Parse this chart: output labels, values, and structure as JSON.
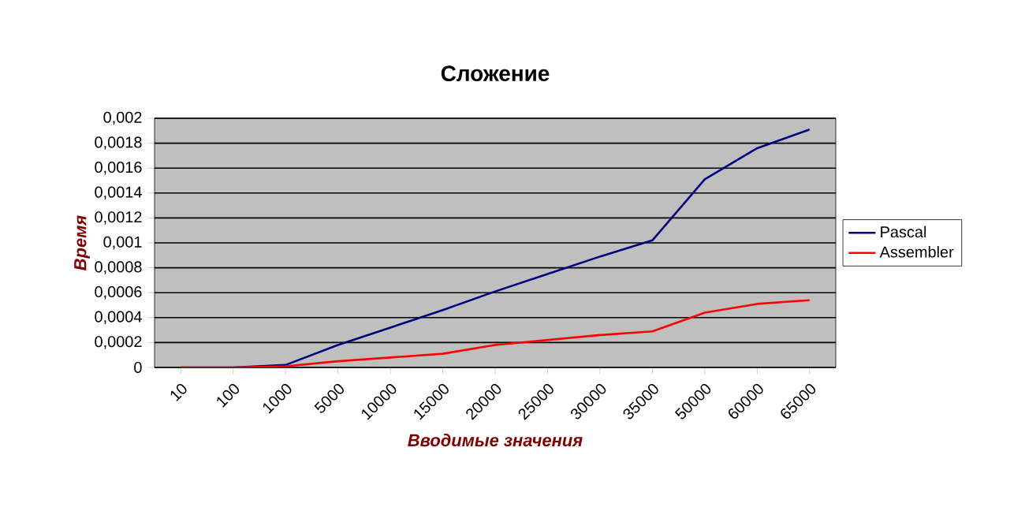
{
  "chart_data": {
    "type": "line",
    "title": "Сложение",
    "xlabel": "Вводимые значения",
    "ylabel": "Время",
    "categories": [
      "10",
      "100",
      "1000",
      "5000",
      "10000",
      "15000",
      "20000",
      "25000",
      "30000",
      "35000",
      "50000",
      "60000",
      "65000"
    ],
    "series": [
      {
        "name": "Pascal",
        "color": "#000080",
        "values": [
          0,
          0,
          2e-05,
          0.00018,
          0.00032,
          0.00046,
          0.00061,
          0.00075,
          0.00089,
          0.00102,
          0.00151,
          0.00176,
          0.00191
        ]
      },
      {
        "name": "Assembler",
        "color": "#ff0000",
        "values": [
          0,
          0,
          1e-05,
          5e-05,
          8e-05,
          0.00011,
          0.00018,
          0.00022,
          0.00026,
          0.00029,
          0.00044,
          0.00051,
          0.00054
        ]
      }
    ],
    "ylim": [
      0,
      0.002
    ],
    "yticks": [
      {
        "value": 0,
        "label": "0"
      },
      {
        "value": 0.0002,
        "label": "0,0002"
      },
      {
        "value": 0.0004,
        "label": "0,0004"
      },
      {
        "value": 0.0006,
        "label": "0,0006"
      },
      {
        "value": 0.0008,
        "label": "0,0008"
      },
      {
        "value": 0.001,
        "label": "0,001"
      },
      {
        "value": 0.0012,
        "label": "0,0012"
      },
      {
        "value": 0.0014,
        "label": "0,0014"
      },
      {
        "value": 0.0016,
        "label": "0,0016"
      },
      {
        "value": 0.0018,
        "label": "0,0018"
      },
      {
        "value": 0.002,
        "label": "0,002"
      }
    ],
    "grid": "y",
    "legend": "right"
  }
}
